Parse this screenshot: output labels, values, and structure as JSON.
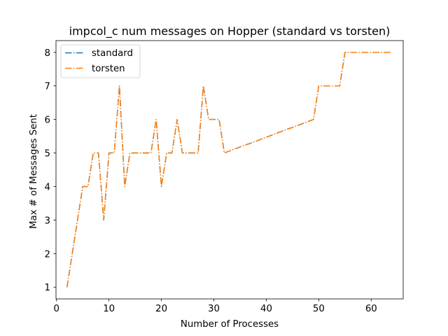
{
  "chart_data": {
    "type": "line",
    "title": "impcol_c num messages on Hopper (standard vs torsten)",
    "xlabel": "Number of Processes",
    "ylabel": "Max # of Messages Sent",
    "xlim": [
      -0.1,
      66.1
    ],
    "ylim": [
      0.65,
      8.35
    ],
    "xticks": [
      0,
      10,
      20,
      30,
      40,
      50,
      60
    ],
    "yticks": [
      1,
      2,
      3,
      4,
      5,
      6,
      7,
      8
    ],
    "grid": false,
    "legend_placement": "upper left",
    "x": [
      2,
      3,
      4,
      5,
      6,
      7,
      8,
      9,
      10,
      11,
      12,
      13,
      14,
      15,
      16,
      17,
      18,
      19,
      20,
      21,
      22,
      23,
      24,
      25,
      26,
      27,
      28,
      29,
      30,
      31,
      32,
      33,
      34,
      35,
      36,
      37,
      38,
      39,
      40,
      41,
      42,
      43,
      44,
      45,
      46,
      47,
      48,
      49,
      50,
      51,
      52,
      53,
      54,
      55,
      56,
      57,
      58,
      59,
      60,
      61,
      62,
      63,
      64
    ],
    "series": [
      {
        "name": "standard",
        "color": "#1f77b4",
        "line_style": "dash-dot",
        "values": [
          1,
          2,
          3,
          4,
          4,
          5,
          5,
          3,
          5,
          5,
          7,
          4,
          5,
          5,
          5,
          5,
          5,
          6,
          4,
          5,
          5,
          6,
          5,
          5,
          5,
          5,
          7,
          6,
          6,
          6,
          5,
          5.06,
          5.12,
          5.18,
          5.24,
          5.29,
          5.35,
          5.41,
          5.47,
          5.53,
          5.59,
          5.65,
          5.71,
          5.76,
          5.82,
          5.88,
          5.94,
          6,
          7,
          7,
          7,
          7,
          7,
          8,
          8,
          8,
          8,
          8,
          8,
          8,
          8,
          8,
          8
        ]
      },
      {
        "name": "torsten",
        "color": "#ff7f0e",
        "line_style": "dash-dot",
        "values": [
          1,
          2,
          3,
          4,
          4,
          5,
          5,
          3,
          5,
          5,
          7,
          4,
          5,
          5,
          5,
          5,
          5,
          6,
          4,
          5,
          5,
          6,
          5,
          5,
          5,
          5,
          7,
          6,
          6,
          6,
          5,
          5.06,
          5.12,
          5.18,
          5.24,
          5.29,
          5.35,
          5.41,
          5.47,
          5.53,
          5.59,
          5.65,
          5.71,
          5.76,
          5.82,
          5.88,
          5.94,
          6,
          7,
          7,
          7,
          7,
          7,
          8,
          8,
          8,
          8,
          8,
          8,
          8,
          8,
          8,
          8
        ]
      }
    ]
  }
}
